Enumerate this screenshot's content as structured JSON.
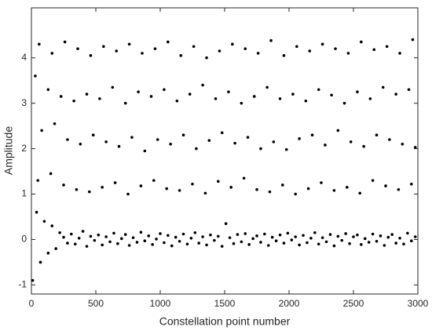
{
  "chart_data": {
    "type": "scatter",
    "xlabel": "Constellation point number",
    "ylabel": "Amplitude",
    "color": "#000000",
    "xlim": [
      0,
      3000
    ],
    "xticks": [
      0,
      500,
      1000,
      1500,
      2000,
      2500,
      3000
    ],
    "ylim": [
      -1.2,
      5.1
    ],
    "yticks": [
      -1,
      0,
      1,
      2,
      3,
      4
    ],
    "x": [
      10,
      40,
      70,
      100,
      130,
      160,
      190,
      220,
      250,
      280,
      310,
      340,
      370,
      400,
      430,
      460,
      490,
      520,
      550,
      580,
      610,
      640,
      670,
      700,
      730,
      760,
      790,
      820,
      850,
      880,
      910,
      940,
      970,
      1000,
      1030,
      1060,
      1090,
      1120,
      1150,
      1180,
      1210,
      1240,
      1270,
      1300,
      1330,
      1360,
      1390,
      1420,
      1450,
      1480,
      1510,
      1540,
      1570,
      1600,
      1630,
      1660,
      1690,
      1720,
      1750,
      1780,
      1810,
      1840,
      1870,
      1900,
      1930,
      1960,
      1990,
      2020,
      2050,
      2080,
      2110,
      2140,
      2170,
      2200,
      2230,
      2260,
      2290,
      2320,
      2350,
      2380,
      2410,
      2440,
      2470,
      2500,
      2530,
      2560,
      2590,
      2620,
      2650,
      2680,
      2710,
      2740,
      2770,
      2800,
      2830,
      2860,
      2890,
      2920,
      2950,
      2980,
      50,
      150,
      250,
      350,
      450,
      550,
      650,
      750,
      850,
      950,
      1050,
      1150,
      1250,
      1350,
      1450,
      1550,
      1650,
      1750,
      1850,
      1950,
      2050,
      2150,
      2250,
      2350,
      2450,
      2550,
      2650,
      2750,
      2850,
      2950,
      80,
      180,
      280,
      380,
      480,
      580,
      680,
      780,
      880,
      980,
      1080,
      1180,
      1280,
      1380,
      1480,
      1580,
      1680,
      1780,
      1880,
      1980,
      2080,
      2180,
      2280,
      2380,
      2480,
      2580,
      2680,
      2780,
      2880,
      2980,
      30,
      130,
      230,
      330,
      430,
      530,
      630,
      730,
      830,
      930,
      1030,
      1130,
      1230,
      1330,
      1430,
      1530,
      1630,
      1730,
      1830,
      1930,
      2030,
      2130,
      2230,
      2330,
      2430,
      2530,
      2630,
      2730,
      2830,
      2930,
      60,
      160,
      260,
      360,
      460,
      560,
      660,
      760,
      860,
      960,
      1060,
      1160,
      1260,
      1360,
      1460,
      1560,
      1660,
      1760,
      1860,
      1960,
      2060,
      2160,
      2260,
      2360,
      2460,
      2560,
      2660,
      2760,
      2860,
      2960
    ],
    "values": [
      -0.9,
      0.6,
      -0.5,
      0.4,
      -0.3,
      0.3,
      -0.2,
      0.15,
      0.05,
      -0.08,
      0.12,
      -0.1,
      0.03,
      0.18,
      -0.15,
      0.07,
      -0.02,
      0.1,
      -0.12,
      0.06,
      -0.05,
      0.14,
      -0.09,
      0.02,
      0.11,
      -0.13,
      0.04,
      -0.06,
      0.16,
      -0.03,
      0.08,
      -0.11,
      0.01,
      0.13,
      -0.07,
      0.09,
      -0.14,
      0.05,
      -0.04,
      0.12,
      -0.1,
      0.03,
      0.15,
      -0.08,
      0.06,
      -0.12,
      0.1,
      -0.02,
      0.07,
      -0.15,
      0.35,
      0.04,
      -0.09,
      0.11,
      -0.05,
      0.13,
      -0.11,
      0.02,
      0.08,
      -0.06,
      0.12,
      -0.13,
      0.05,
      -0.03,
      0.1,
      -0.08,
      0.14,
      -0.01,
      0.06,
      -0.12,
      0.09,
      -0.07,
      0.03,
      0.15,
      -0.1,
      0.04,
      -0.05,
      0.11,
      -0.14,
      0.07,
      -0.02,
      0.13,
      -0.09,
      0.06,
      0.1,
      -0.11,
      0.02,
      -0.06,
      0.12,
      -0.04,
      0.08,
      -0.13,
      0.05,
      0.11,
      -0.08,
      0.03,
      -0.1,
      0.14,
      -0.03,
      0.06,
      1.3,
      1.45,
      1.2,
      1.1,
      1.05,
      1.15,
      1.25,
      1.0,
      1.18,
      1.3,
      1.12,
      1.08,
      1.22,
      1.02,
      1.28,
      1.15,
      1.35,
      1.1,
      1.05,
      1.2,
      1.0,
      1.12,
      1.25,
      1.08,
      1.15,
      1.02,
      1.3,
      1.18,
      1.1,
      1.22,
      2.4,
      2.55,
      2.2,
      2.1,
      2.3,
      2.15,
      2.05,
      2.25,
      1.95,
      2.2,
      2.1,
      2.3,
      2.0,
      2.18,
      2.35,
      2.12,
      2.25,
      2.0,
      2.15,
      1.98,
      2.22,
      2.3,
      2.08,
      2.4,
      2.15,
      2.05,
      2.3,
      2.2,
      2.1,
      2.03,
      3.6,
      3.3,
      3.15,
      3.05,
      3.2,
      3.1,
      3.35,
      3.0,
      3.25,
      3.15,
      3.3,
      3.05,
      3.2,
      3.4,
      3.1,
      3.25,
      3.0,
      3.15,
      3.35,
      3.1,
      3.2,
      3.05,
      3.3,
      3.18,
      3.0,
      3.25,
      3.1,
      3.35,
      3.2,
      3.3,
      4.3,
      4.1,
      4.35,
      4.2,
      4.05,
      4.25,
      4.15,
      4.3,
      4.1,
      4.2,
      4.35,
      4.05,
      4.25,
      4.0,
      4.15,
      4.3,
      4.2,
      4.1,
      4.38,
      4.05,
      4.25,
      4.15,
      4.3,
      4.2,
      4.1,
      4.35,
      4.18,
      4.25,
      4.1,
      4.4
    ]
  }
}
